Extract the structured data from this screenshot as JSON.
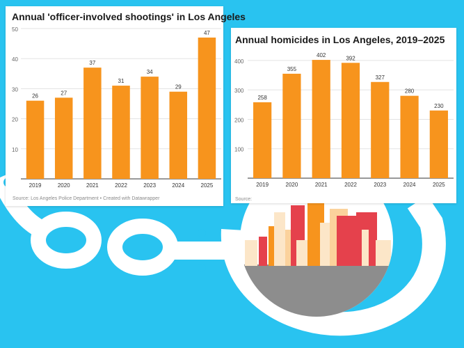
{
  "colors": {
    "background": "#29c3f0",
    "bar": "#f7941d",
    "gridline": "#e3e3e3",
    "city_red": "#e5414c",
    "city_orange": "#f7941d",
    "city_cream": "#fce6c8",
    "city_gray": "#8d8d8d"
  },
  "charts": [
    {
      "title": "Annual 'officer-involved shootings' in Los Angeles",
      "source": "Source: Los Angeles Police Department • Created with Datawrapper",
      "chart_data": {
        "type": "bar",
        "categories": [
          "2019",
          "2020",
          "2021",
          "2022",
          "2023",
          "2024",
          "2025"
        ],
        "values": [
          26,
          27,
          37,
          31,
          34,
          29,
          47
        ],
        "ylim": [
          0,
          50
        ],
        "yticks": [
          "10",
          "20",
          "30",
          "40",
          "50"
        ],
        "grid": true
      }
    },
    {
      "title": "Annual homicides in Los Angeles, 2019–2025",
      "source": "Source:",
      "chart_data": {
        "type": "bar",
        "categories": [
          "2019",
          "2020",
          "2021",
          "2022",
          "2023",
          "2024",
          "2025"
        ],
        "values": [
          258,
          355,
          402,
          392,
          327,
          280,
          230
        ],
        "ylim": [
          0,
          440
        ],
        "yticks": [
          "100",
          "200",
          "300",
          "400"
        ],
        "grid": true
      }
    }
  ]
}
